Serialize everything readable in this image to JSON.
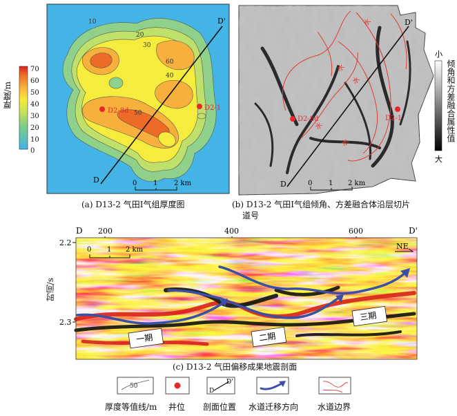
{
  "panel_a": {
    "caption": "(a) D13-2 气田Ⅰ气组厚度图",
    "colorbar_title": "厚度/m",
    "colorbar_ticks": [
      "70",
      "60",
      "50",
      "40",
      "30",
      "20",
      "10",
      "0"
    ],
    "contour_labels": [
      "10",
      "20",
      "30",
      "40",
      "50",
      "60"
    ],
    "section_start": "D",
    "section_end": "D'",
    "wells": [
      "D2-8d",
      "D2-1"
    ],
    "scale_ticks": [
      "0",
      "1",
      "2 km"
    ]
  },
  "panel_b": {
    "caption_line1": "(b) D13-2 气田Ⅰ气组倾角、方差融合体沿层切片",
    "caption_line2": "道号",
    "colorbar_top": "小",
    "colorbar_bottom": "大",
    "colorbar_title": "倾角和方差融合属性值",
    "section_start": "D",
    "section_end": "D'",
    "wells": [
      "D2-8d",
      "D2-1"
    ],
    "scale_ticks": [
      "0",
      "1",
      "2 km"
    ],
    "channel_label": "水"
  },
  "panel_c": {
    "caption": "(c) D13-2 气田偏移成果地震剖面",
    "start_label": "D",
    "end_label": "D'",
    "trace_ticks": [
      "200",
      "400",
      "600"
    ],
    "y_ticks": [
      "2.2",
      "2.3"
    ],
    "y_label": "时间/s",
    "scale_ticks": [
      "0",
      "1",
      "2 km"
    ],
    "direction": "NE",
    "stages": [
      "一期",
      "二期",
      "三期"
    ]
  },
  "legend": [
    {
      "id": "contour",
      "label": "厚度等值线/m",
      "sample": "50"
    },
    {
      "id": "well",
      "label": "井位"
    },
    {
      "id": "section",
      "label": "剖面位置",
      "sample_start": "D",
      "sample_end": "D'"
    },
    {
      "id": "migration",
      "label": "水道迁移方向"
    },
    {
      "id": "boundary",
      "label": "水道边界"
    }
  ],
  "colors": {
    "well": "#e8262b",
    "migration_arrow": "#3a4fa6",
    "channel_boundary": "#e23a2e",
    "map_background": "#3fb1e6"
  }
}
